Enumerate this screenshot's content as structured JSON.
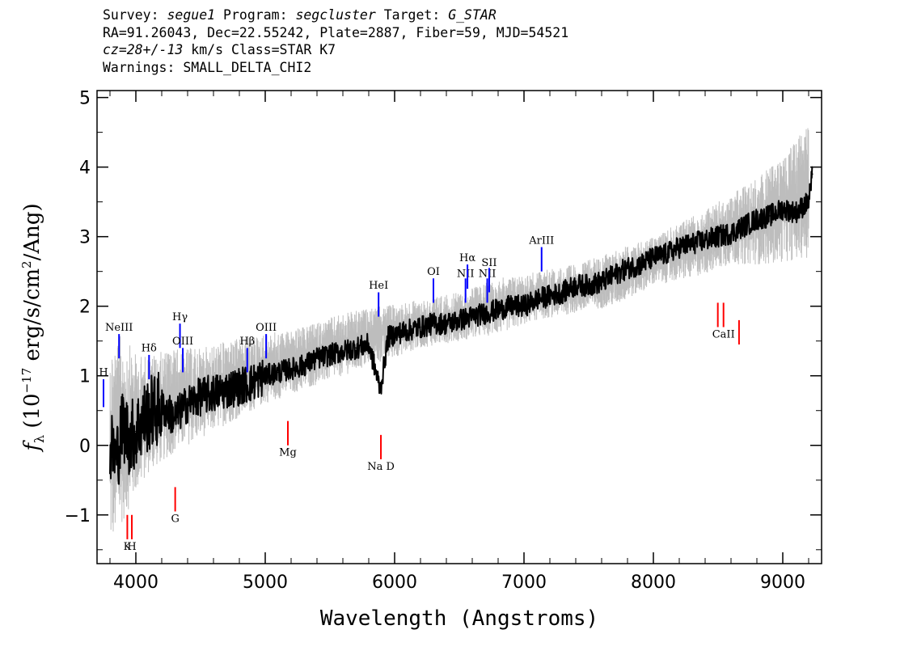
{
  "header": {
    "line1": {
      "survey_label": "Survey: ",
      "survey": "segue1",
      "program_label": " Program: ",
      "program": "segcluster",
      "target_label": " Target: ",
      "target": "G_STAR"
    },
    "line2": "RA=91.26043, Dec=22.55242, Plate=2887, Fiber=59, MJD=54521",
    "line3": {
      "cz": "cz=28+/-13",
      "rest": " km/s Class=STAR K7"
    },
    "line4": "Warnings: SMALL_DELTA_CHI2"
  },
  "chart_data": {
    "type": "line",
    "xlabel": "Wavelength (Angstroms)",
    "ylabel": "f_λ (10⁻¹⁷ erg/s/cm²/Ang)",
    "ylabel_parts": {
      "f": "f",
      "sub": "λ",
      "a": " (10",
      "exp": "−17",
      "b": " erg/s/cm",
      "exp2": "2",
      "c": "/Ang)"
    },
    "xlim": [
      3700,
      9300
    ],
    "ylim": [
      -1.7,
      5.1
    ],
    "xticks": [
      4000,
      5000,
      6000,
      7000,
      8000,
      9000
    ],
    "xtick_labels": [
      "4000",
      "5000",
      "6000",
      "7000",
      "8000",
      "9000"
    ],
    "yticks": [
      -1,
      0,
      1,
      2,
      3,
      4,
      5
    ],
    "ytick_labels": [
      "−1",
      "0",
      "1",
      "2",
      "3",
      "4",
      "5"
    ],
    "series": [
      {
        "role": "error-envelope",
        "color": "#bdbdbd",
        "x": [
          3800,
          3900,
          4000,
          4100,
          4300,
          4500,
          4700,
          5000,
          5300,
          5600,
          5900,
          6200,
          6500,
          6800,
          7100,
          7400,
          7700,
          8000,
          8300,
          8600,
          8900,
          9200
        ],
        "y_low": [
          -1.5,
          -1.1,
          -0.7,
          -0.4,
          -0.1,
          0.1,
          0.3,
          0.6,
          0.8,
          1.0,
          1.2,
          1.4,
          1.5,
          1.6,
          1.8,
          1.9,
          2.0,
          2.3,
          2.4,
          2.6,
          2.6,
          2.7
        ],
        "y_high": [
          1.5,
          1.6,
          1.3,
          1.3,
          1.4,
          1.4,
          1.5,
          1.6,
          1.7,
          1.9,
          2.0,
          2.1,
          2.2,
          2.4,
          2.5,
          2.6,
          2.8,
          3.0,
          3.3,
          3.6,
          4.0,
          4.6
        ]
      },
      {
        "role": "flux",
        "color": "#000000",
        "x": [
          3800,
          3850,
          3900,
          3950,
          4000,
          4050,
          4100,
          4200,
          4300,
          4400,
          4500,
          4600,
          4700,
          4800,
          4900,
          5000,
          5100,
          5200,
          5300,
          5400,
          5500,
          5600,
          5700,
          5800,
          5890,
          5950,
          6000,
          6100,
          6200,
          6300,
          6400,
          6500,
          6600,
          6700,
          6800,
          6900,
          7000,
          7100,
          7200,
          7300,
          7400,
          7500,
          7600,
          7700,
          7800,
          7900,
          8000,
          8100,
          8200,
          8300,
          8400,
          8500,
          8600,
          8700,
          8800,
          8900,
          9000,
          9100,
          9200,
          9230
        ],
        "y": [
          0.0,
          -0.2,
          0.3,
          0.1,
          0.2,
          0.35,
          0.45,
          0.55,
          0.4,
          0.6,
          0.7,
          0.75,
          0.8,
          0.85,
          0.9,
          1.0,
          1.05,
          1.1,
          1.15,
          1.25,
          1.3,
          1.35,
          1.4,
          1.45,
          0.8,
          1.55,
          1.6,
          1.65,
          1.7,
          1.75,
          1.75,
          1.8,
          1.85,
          1.9,
          1.95,
          2.0,
          2.0,
          2.1,
          2.15,
          2.2,
          2.3,
          2.3,
          2.35,
          2.45,
          2.55,
          2.6,
          2.7,
          2.75,
          2.85,
          2.9,
          2.95,
          3.0,
          3.05,
          3.15,
          3.25,
          3.3,
          3.4,
          3.35,
          3.5,
          3.9
        ]
      }
    ],
    "line_markers": {
      "emission_color": "#0000ff",
      "absorption_color": "#ff0000",
      "emission": [
        {
          "label": "H",
          "x": 3750,
          "y0": 0.55,
          "y1": 0.95,
          "label_y": 1.0
        },
        {
          "label": "NeIII",
          "x": 3870,
          "y0": 1.25,
          "y1": 1.6,
          "label_y": 1.65
        },
        {
          "label": "Hδ",
          "x": 4102,
          "y0": 0.95,
          "y1": 1.3,
          "label_y": 1.35
        },
        {
          "label": "Hγ",
          "x": 4341,
          "y0": 1.4,
          "y1": 1.75,
          "label_y": 1.8
        },
        {
          "label": "OIII",
          "x": 4363,
          "y0": 1.05,
          "y1": 1.4,
          "label_y": 1.45
        },
        {
          "label": "Hβ",
          "x": 4861,
          "y0": 1.05,
          "y1": 1.4,
          "label_y": 1.45
        },
        {
          "label": "OIII",
          "x": 5007,
          "y0": 1.25,
          "y1": 1.6,
          "label_y": 1.65
        },
        {
          "label": "HeI",
          "x": 5876,
          "y0": 1.85,
          "y1": 2.2,
          "label_y": 2.25
        },
        {
          "label": "OI",
          "x": 6300,
          "y0": 2.05,
          "y1": 2.4,
          "label_y": 2.45
        },
        {
          "label": "NII",
          "x": 6548,
          "y0": 2.05,
          "y1": 2.4,
          "label_y": 2.42
        },
        {
          "label": "Hα",
          "x": 6563,
          "y0": 2.25,
          "y1": 2.6,
          "label_y": 2.65
        },
        {
          "label": "NII",
          "x": 6716,
          "y0": 2.05,
          "y1": 2.4,
          "label_y": 2.42
        },
        {
          "label": "SII",
          "x": 6731,
          "y0": 2.2,
          "y1": 2.55,
          "label_y": 2.58
        },
        {
          "label": "ArIII",
          "x": 7136,
          "y0": 2.5,
          "y1": 2.85,
          "label_y": 2.9
        }
      ],
      "absorption": [
        {
          "label": "K",
          "x": 3934,
          "y0": -1.35,
          "y1": -1.0,
          "label_y": -1.5
        },
        {
          "label": "H",
          "x": 3969,
          "y0": -1.35,
          "y1": -1.0,
          "label_y": -1.5
        },
        {
          "label": "G",
          "x": 4304,
          "y0": -0.95,
          "y1": -0.6,
          "label_y": -1.1
        },
        {
          "label": "Mg",
          "x": 5175,
          "y0": 0.0,
          "y1": 0.35,
          "label_y": -0.15
        },
        {
          "label": "Na D",
          "x": 5894,
          "y0": -0.2,
          "y1": 0.15,
          "label_y": -0.35
        },
        {
          "label": "",
          "x": 8498,
          "y0": 1.7,
          "y1": 2.05,
          "label_y": 1.55
        },
        {
          "label": "CaII",
          "x": 8542,
          "y0": 1.7,
          "y1": 2.05,
          "label_y": 1.55
        },
        {
          "label": "",
          "x": 8662,
          "y0": 1.45,
          "y1": 1.8,
          "label_y": 1.3
        }
      ]
    }
  }
}
